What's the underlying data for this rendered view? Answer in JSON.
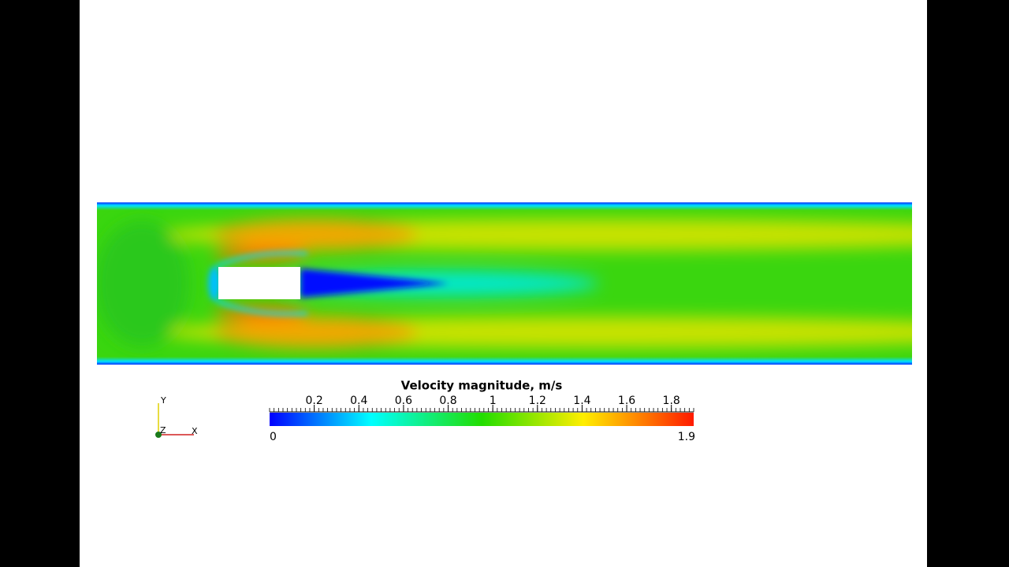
{
  "colorbar": {
    "title": "Velocity magnitude, m/s",
    "range": [
      0,
      1.9
    ],
    "ticks": [
      0.2,
      0.4,
      0.6,
      0.8,
      1,
      1.2,
      1.4,
      1.6,
      1.8
    ]
  },
  "orientation_axes": {
    "y": "Y",
    "z": "Z",
    "x": "X"
  }
}
